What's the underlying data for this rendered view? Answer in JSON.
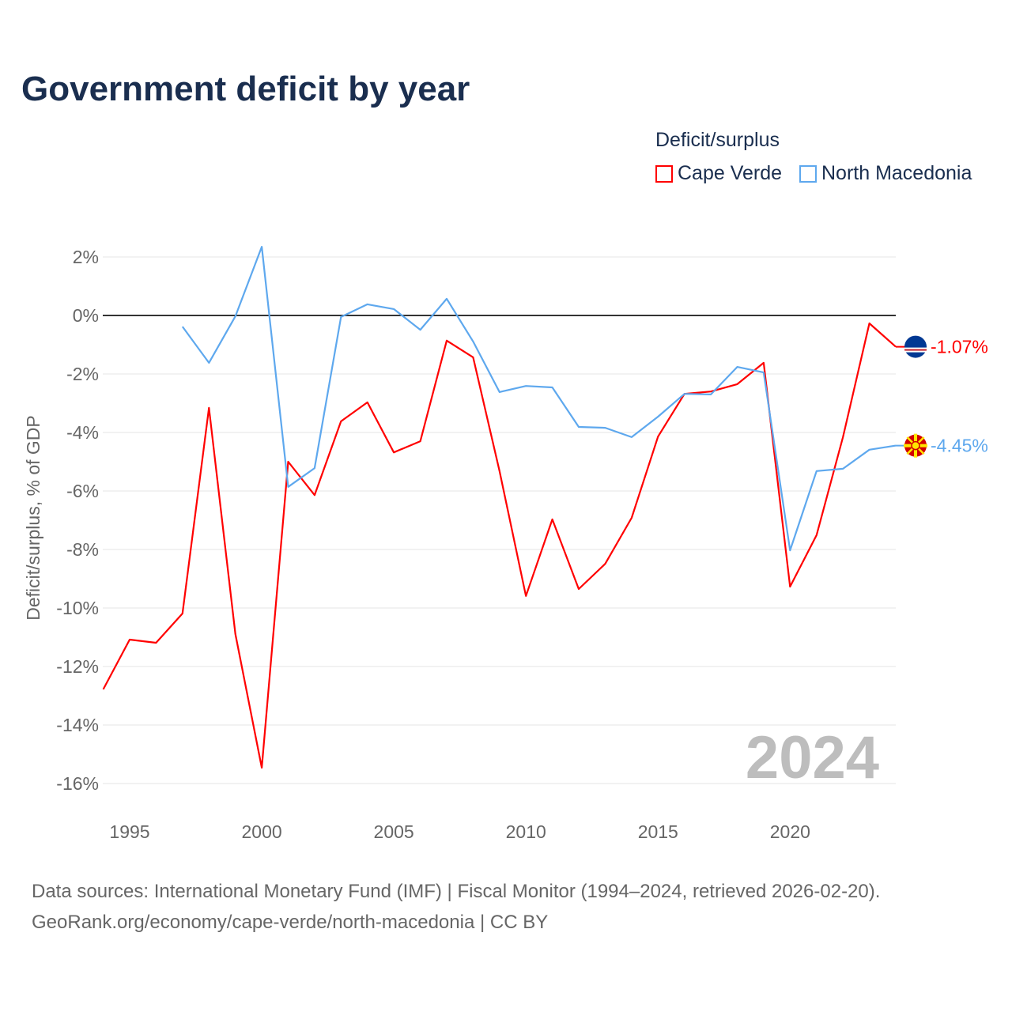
{
  "title": "Government deficit by year",
  "legend": {
    "title": "Deficit/surplus",
    "items": [
      "Cape Verde",
      "North Macedonia"
    ]
  },
  "source_lines": [
    "Data sources: International Monetary Fund (IMF) | Fiscal Monitor (1994–2024, retrieved 2026-02-20).",
    "GeoRank.org/economy/cape-verde/north-macedonia | CC BY"
  ],
  "chart_data": {
    "type": "line",
    "title": "Government deficit by year",
    "xlabel": "",
    "ylabel": "Deficit/surplus, % of GDP",
    "xlim": [
      1994,
      2024
    ],
    "ylim": [
      -16,
      2
    ],
    "yticks": [
      2,
      0,
      -2,
      -4,
      -6,
      -8,
      -10,
      -12,
      -14,
      -16
    ],
    "ytick_labels": [
      "2%",
      "0%",
      "-2%",
      "-4%",
      "-6%",
      "-8%",
      "-10%",
      "-12%",
      "-14%",
      "-16%"
    ],
    "xticks": [
      1995,
      2000,
      2005,
      2010,
      2015,
      2020
    ],
    "xtick_labels": [
      "1995",
      "2000",
      "2005",
      "2010",
      "2015",
      "2020"
    ],
    "grid": true,
    "legend_position": "top-right",
    "year_label": "2024",
    "series": [
      {
        "name": "Cape Verde",
        "color": "#ff0000",
        "end_label": "-1.07%",
        "x": [
          1994,
          1995,
          1996,
          1997,
          1998,
          1999,
          2000,
          2001,
          2002,
          2003,
          2004,
          2005,
          2006,
          2007,
          2008,
          2009,
          2010,
          2011,
          2012,
          2013,
          2014,
          2015,
          2016,
          2017,
          2018,
          2019,
          2020,
          2021,
          2022,
          2023,
          2024
        ],
        "values": [
          -12.78,
          -11.08,
          -11.19,
          -10.19,
          -3.16,
          -10.89,
          -15.46,
          -5.0,
          -6.14,
          -3.62,
          -2.97,
          -4.68,
          -4.3,
          -0.86,
          -1.43,
          -5.32,
          -9.59,
          -6.97,
          -9.35,
          -8.49,
          -6.92,
          -4.14,
          -2.68,
          -2.6,
          -2.35,
          -1.62,
          -9.27,
          -7.51,
          -4.16,
          -0.27,
          -1.07
        ]
      },
      {
        "name": "North Macedonia",
        "color": "#5ea8ee",
        "end_label": "-4.45%",
        "x": [
          1997,
          1998,
          1999,
          2000,
          2001,
          2002,
          2003,
          2004,
          2005,
          2006,
          2007,
          2008,
          2009,
          2010,
          2011,
          2012,
          2013,
          2014,
          2015,
          2016,
          2017,
          2018,
          2019,
          2020,
          2021,
          2022,
          2023,
          2024
        ],
        "values": [
          -0.38,
          -1.62,
          -0.03,
          2.35,
          -5.86,
          -5.22,
          -0.05,
          0.38,
          0.22,
          -0.49,
          0.57,
          -0.89,
          -2.62,
          -2.41,
          -2.46,
          -3.81,
          -3.84,
          -4.16,
          -3.46,
          -2.68,
          -2.7,
          -1.76,
          -1.95,
          -8.03,
          -5.32,
          -5.24,
          -4.59,
          -4.45
        ]
      }
    ]
  }
}
